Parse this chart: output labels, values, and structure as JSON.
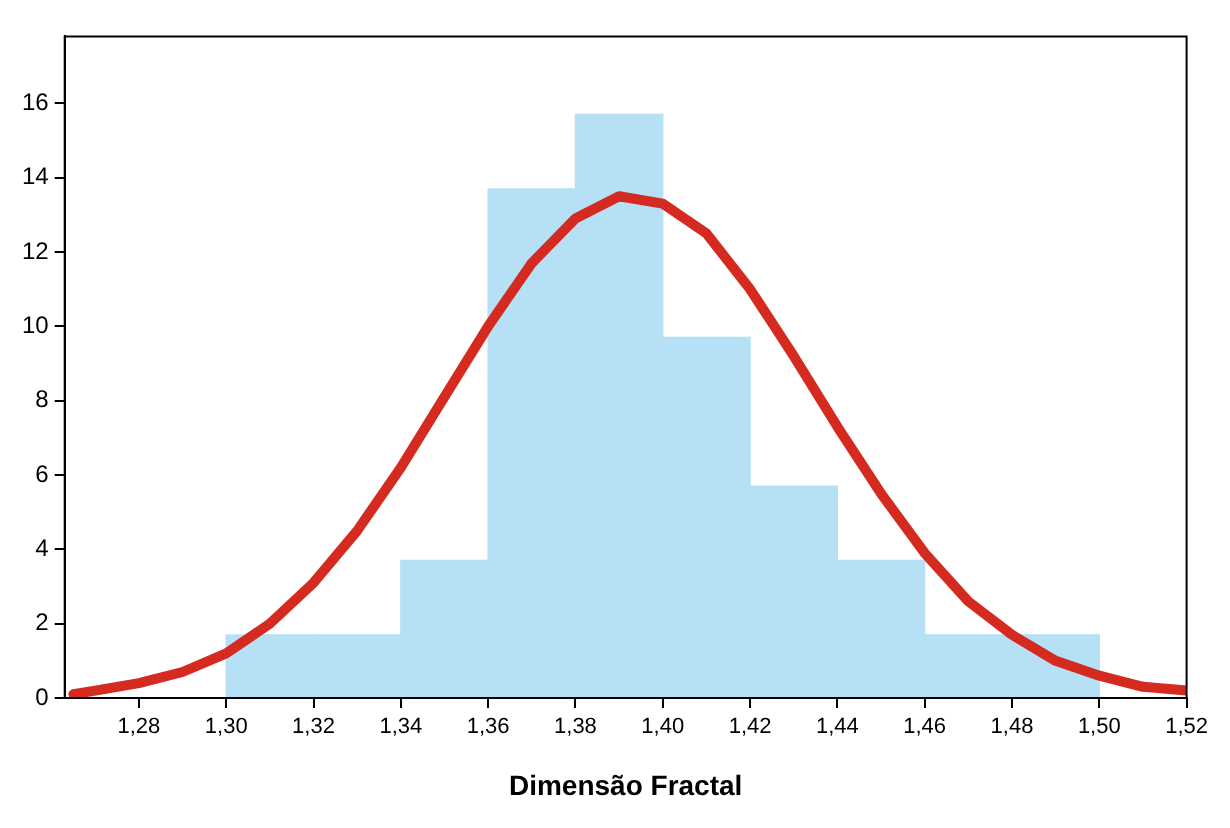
{
  "chart_data": {
    "type": "histogram",
    "xlabel": "Dimensão Fractal",
    "xlim": [
      1.263,
      1.52
    ],
    "xticks": [
      {
        "value": 1.28,
        "label": "1,28"
      },
      {
        "value": 1.3,
        "label": "1,30"
      },
      {
        "value": 1.32,
        "label": "1,32"
      },
      {
        "value": 1.34,
        "label": "1,34"
      },
      {
        "value": 1.36,
        "label": "1,36"
      },
      {
        "value": 1.38,
        "label": "1,38"
      },
      {
        "value": 1.4,
        "label": "1,40"
      },
      {
        "value": 1.42,
        "label": "1,42"
      },
      {
        "value": 1.44,
        "label": "1,44"
      },
      {
        "value": 1.46,
        "label": "1,46"
      },
      {
        "value": 1.48,
        "label": "1,48"
      },
      {
        "value": 1.5,
        "label": "1,50"
      },
      {
        "value": 1.52,
        "label": "1,52"
      }
    ],
    "ylim": [
      0,
      17.8
    ],
    "yticks": [
      0,
      2,
      4,
      6,
      8,
      10,
      12,
      14,
      16
    ],
    "grid": false,
    "legend": false,
    "series": [
      {
        "color": "#b5e0f6",
        "bins": [
          1.3,
          1.32,
          1.34,
          1.36,
          1.38,
          1.4,
          1.42,
          1.44,
          1.46,
          1.48,
          1.5
        ],
        "values": [
          1.7,
          1.7,
          3.7,
          13.7,
          15.7,
          9.7,
          5.7,
          3.7,
          1.7,
          1.7
        ]
      },
      {
        "type": "line",
        "color": "#d42a20",
        "x": [
          1.265,
          1.27,
          1.28,
          1.29,
          1.3,
          1.31,
          1.32,
          1.33,
          1.34,
          1.35,
          1.36,
          1.37,
          1.38,
          1.39,
          1.4,
          1.41,
          1.42,
          1.43,
          1.44,
          1.45,
          1.46,
          1.47,
          1.48,
          1.49,
          1.5,
          1.51,
          1.52
        ],
        "values": [
          0.1,
          0.2,
          0.4,
          0.7,
          1.2,
          2.0,
          3.1,
          4.5,
          6.2,
          8.1,
          10.0,
          11.7,
          12.9,
          13.5,
          13.3,
          12.5,
          11.0,
          9.2,
          7.3,
          5.5,
          3.9,
          2.6,
          1.7,
          1.0,
          0.6,
          0.3,
          0.2
        ]
      }
    ]
  }
}
